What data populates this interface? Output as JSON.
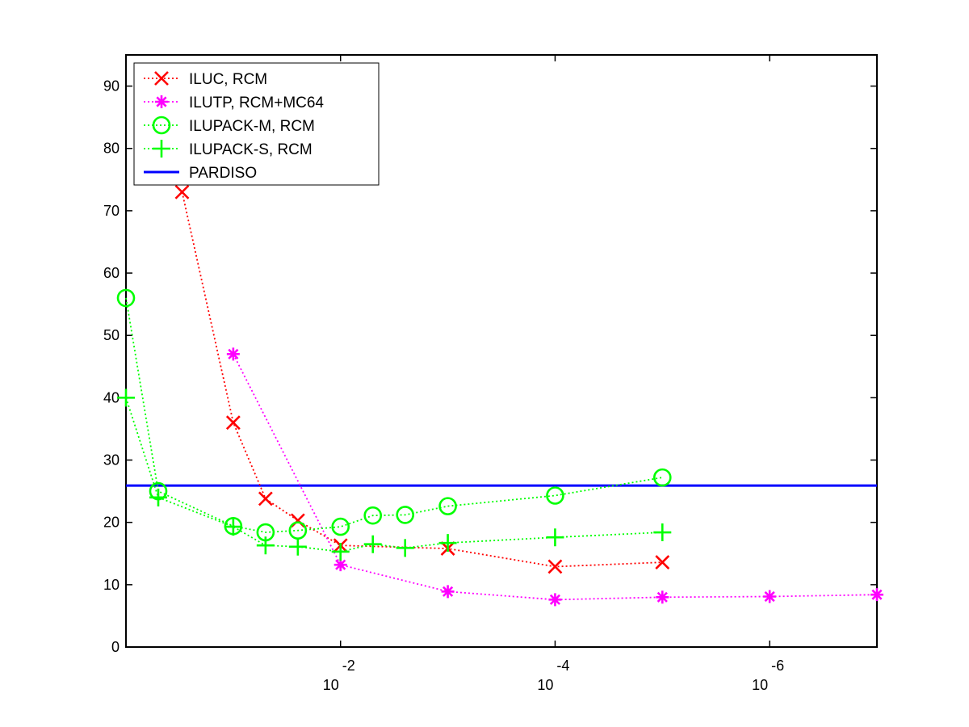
{
  "chart_data": {
    "type": "line",
    "title": "",
    "xlabel": "",
    "ylabel": "",
    "x_scale": "log",
    "x_reversed": true,
    "xlim": [
      1,
      1e-07
    ],
    "ylim": [
      0,
      95
    ],
    "grid": false,
    "legend_position": "top-left",
    "y_ticks": [
      0,
      10,
      20,
      30,
      40,
      50,
      60,
      70,
      80,
      90
    ],
    "y_tick_labels": [
      "0",
      "10",
      "20",
      "30",
      "40",
      "50",
      "60",
      "70",
      "80",
      "90"
    ],
    "x_ticks": [
      {
        "value": 0.01,
        "base": "10",
        "exponent": "-2"
      },
      {
        "value": 0.0001,
        "base": "10",
        "exponent": "-4"
      },
      {
        "value": 1e-06,
        "base": "10",
        "exponent": "-6"
      }
    ],
    "series": [
      {
        "name": "ILUC, RCM",
        "color": "#ff0000",
        "marker": "x",
        "x": [
          0.3,
          0.1,
          0.05,
          0.025,
          0.01,
          0.001,
          0.0001,
          1e-05
        ],
        "y": [
          73,
          36,
          23.8,
          20.3,
          16.3,
          15.8,
          12.9,
          13.6
        ]
      },
      {
        "name": "ILUTP, RCM+MC64",
        "color": "#ff00ff",
        "marker": "asterisk",
        "x": [
          0.1,
          0.01,
          0.001,
          0.0001,
          1e-05,
          1e-06,
          1e-07
        ],
        "y": [
          47,
          13.2,
          8.9,
          7.6,
          8,
          8.1,
          8.4
        ]
      },
      {
        "name": "ILUPACK-M, RCM",
        "color": "#00ff00",
        "marker": "circle",
        "x": [
          1,
          0.5,
          0.1,
          0.05,
          0.025,
          0.01,
          0.005,
          0.0025,
          0.001,
          0.0001,
          1e-05
        ],
        "y": [
          56,
          25,
          19.4,
          18.4,
          18.7,
          19.3,
          21.1,
          21.2,
          22.6,
          24.3,
          27.2
        ]
      },
      {
        "name": "ILUPACK-S, RCM",
        "color": "#00ff00",
        "marker": "plus",
        "x": [
          1,
          0.5,
          0.1,
          0.05,
          0.025,
          0.01,
          0.005,
          0.0025,
          0.001,
          0.0001,
          1e-05
        ],
        "y": [
          40,
          24,
          19.3,
          16.3,
          16.1,
          15.3,
          16.5,
          15.9,
          16.7,
          17.6,
          18.4
        ]
      }
    ],
    "reference_lines": [
      {
        "name": "PARDISO",
        "color": "#0000ff",
        "y": 25.9
      }
    ]
  }
}
